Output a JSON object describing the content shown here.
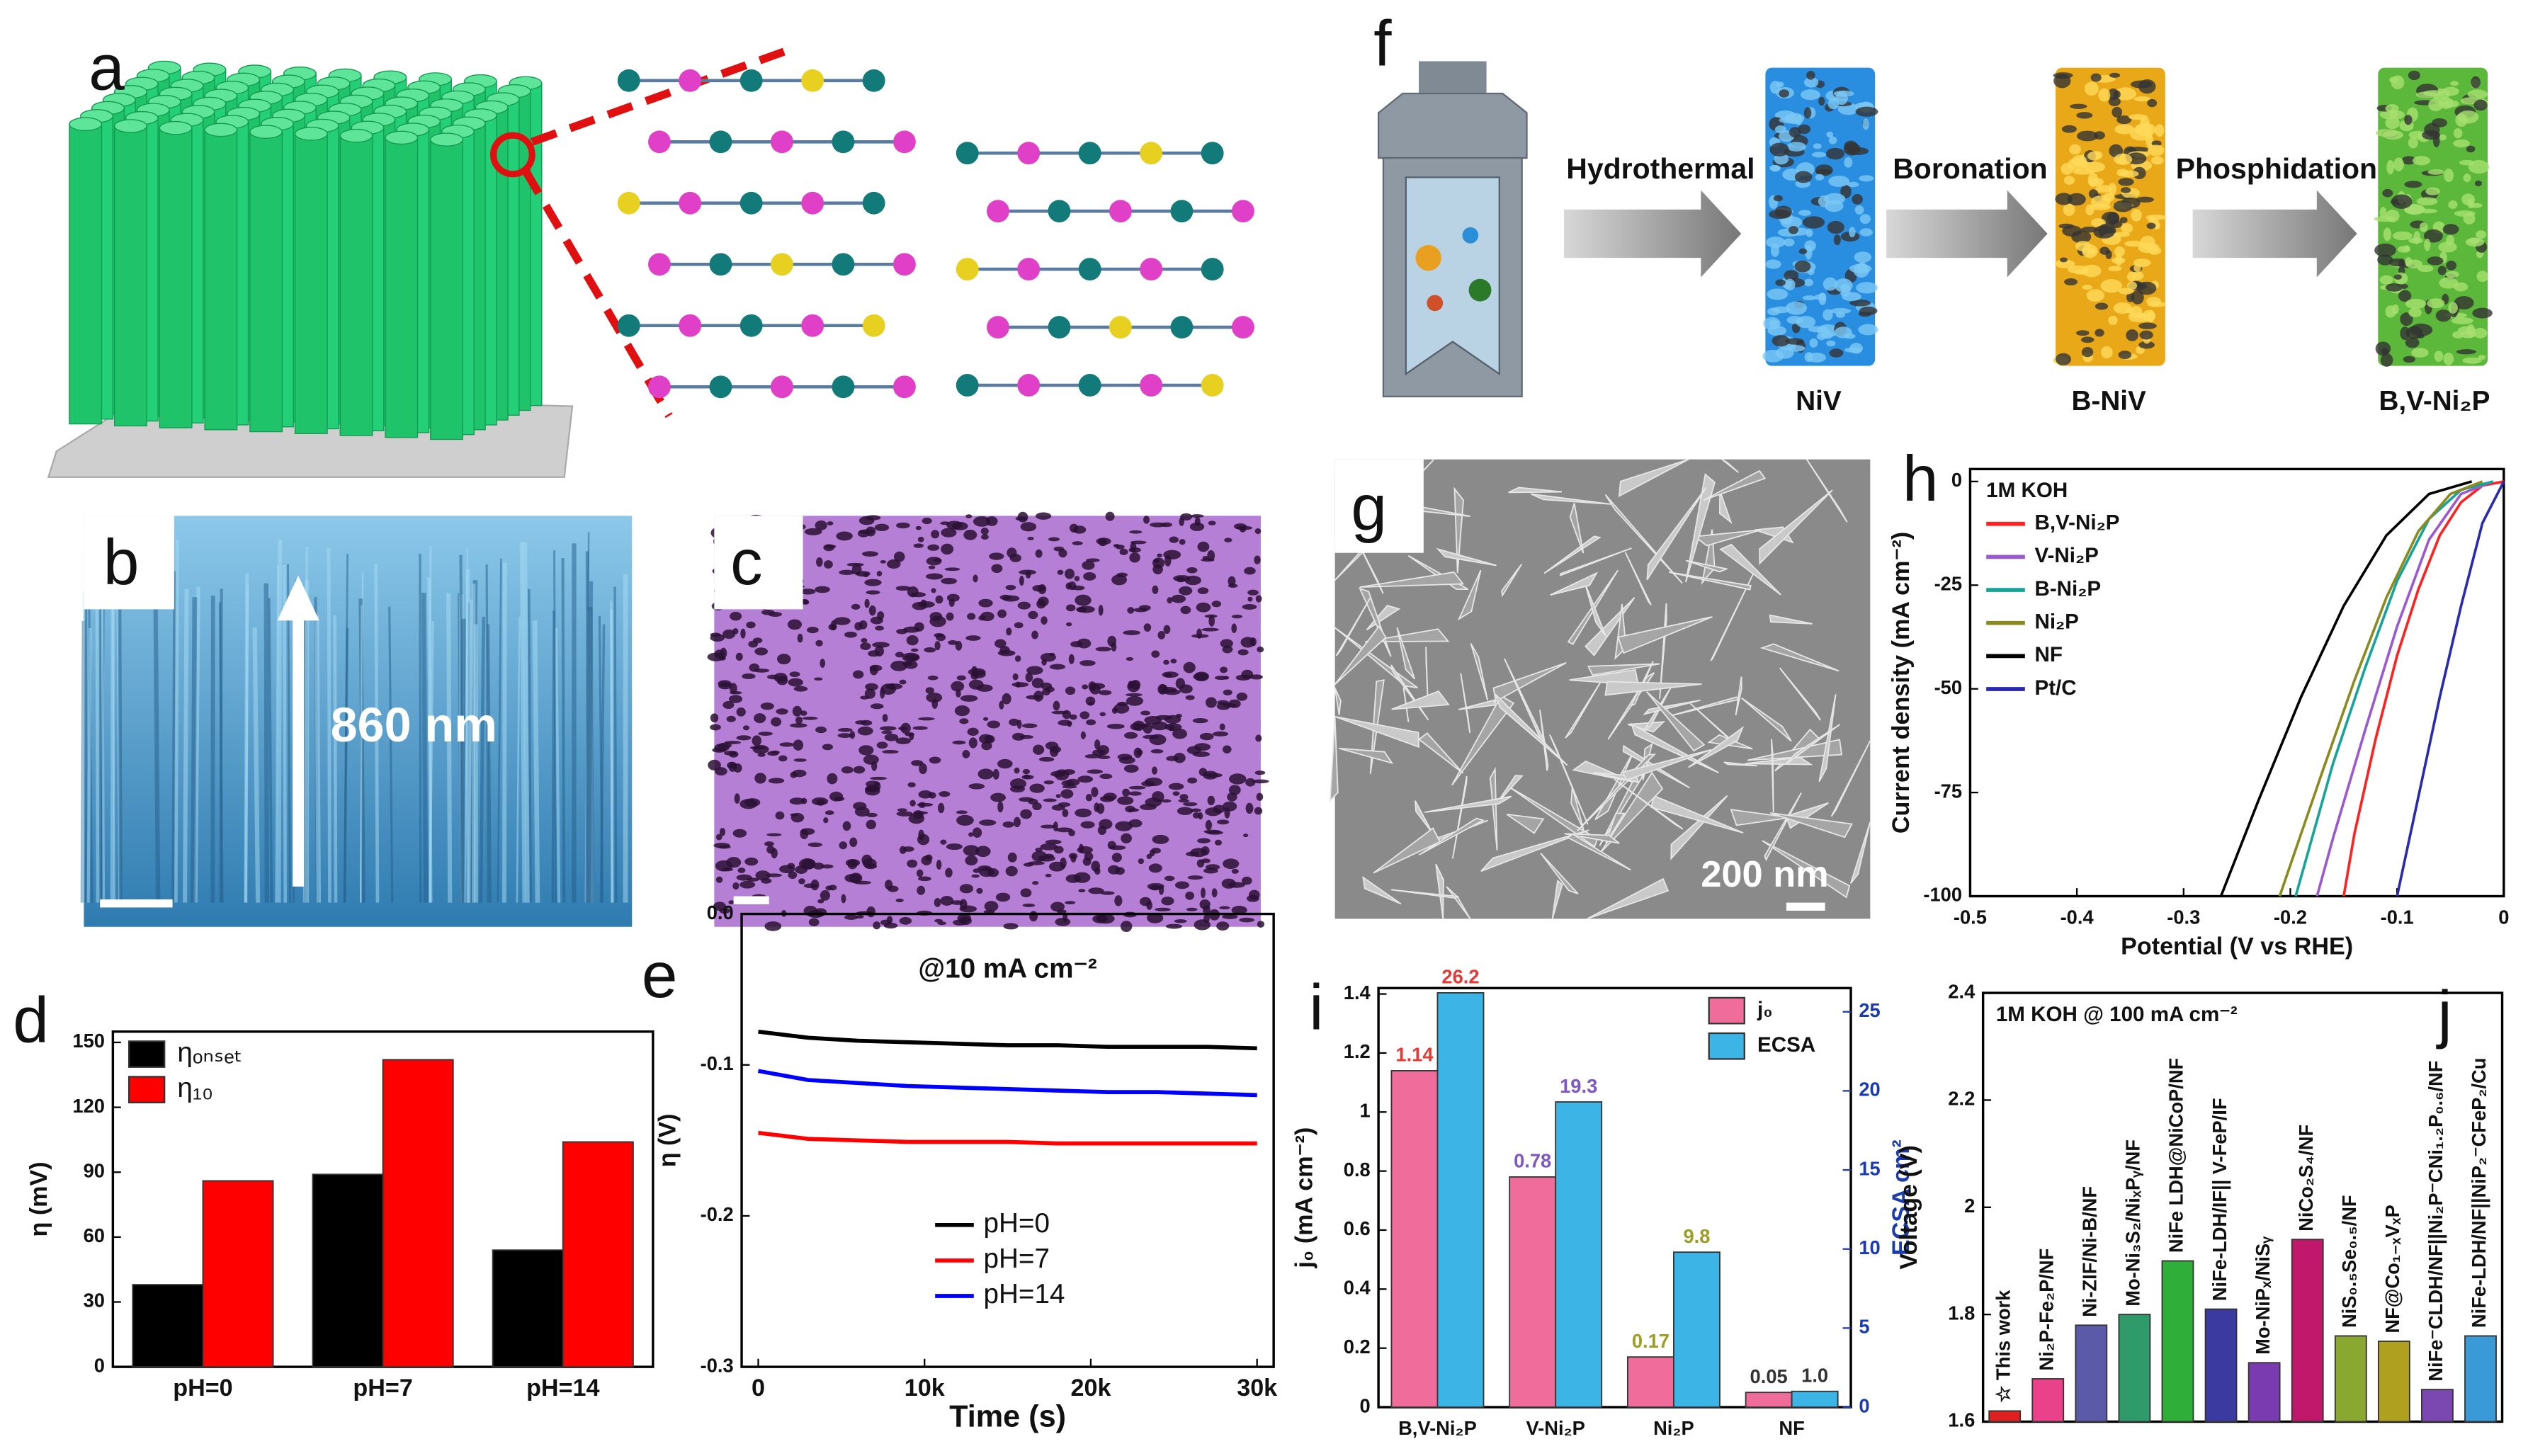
{
  "figure": {
    "a": "a",
    "b": "b",
    "b_scale": "860 nm",
    "c": "c",
    "f": "f",
    "f_steps": [
      "Hydrothermal",
      "Boronation",
      "Phosphidation"
    ],
    "f_products": [
      "NiV",
      "B-NiV",
      "B,V-Ni₂P"
    ],
    "g": "g",
    "g_scale": "200 nm"
  },
  "chart_data": [
    {
      "type": "bar",
      "label": "d",
      "ylabel": "η (mV)",
      "categories": [
        "pH=0",
        "pH=7",
        "pH=14"
      ],
      "series": [
        {
          "name": "ηₒₙₛₑₜ",
          "color": "#000000",
          "values": [
            38,
            89,
            54
          ]
        },
        {
          "name": "η₁₀",
          "color": "#ff0000",
          "values": [
            86,
            142,
            104
          ]
        }
      ],
      "ylim": [
        0,
        155
      ],
      "yticks": [
        0,
        30,
        60,
        90,
        120,
        150
      ],
      "legend": "upper left"
    },
    {
      "type": "line",
      "label": "e",
      "title": "@10 mA cm⁻²",
      "xlabel": "Time (s)",
      "ylabel": "η (V)",
      "x": [
        0,
        3000,
        6000,
        9000,
        12000,
        15000,
        18000,
        21000,
        24000,
        27000,
        30000
      ],
      "series": [
        {
          "name": "pH=0",
          "color": "#000000",
          "values": [
            -0.078,
            -0.082,
            -0.084,
            -0.085,
            -0.086,
            -0.087,
            -0.087,
            -0.088,
            -0.088,
            -0.088,
            -0.089
          ]
        },
        {
          "name": "pH=7",
          "color": "#ff0000",
          "values": [
            -0.145,
            -0.149,
            -0.15,
            -0.151,
            -0.151,
            -0.151,
            -0.152,
            -0.152,
            -0.152,
            -0.152,
            -0.152
          ]
        },
        {
          "name": "pH=14",
          "color": "#0000ff",
          "values": [
            -0.104,
            -0.11,
            -0.112,
            -0.114,
            -0.115,
            -0.116,
            -0.117,
            -0.118,
            -0.118,
            -0.119,
            -0.12
          ]
        }
      ],
      "xlim": [
        -1000,
        31000
      ],
      "xticks": [
        0,
        {
          "value": 10000,
          "label": "10k"
        },
        {
          "value": 20000,
          "label": "20k"
        },
        {
          "value": 30000,
          "label": "30k"
        }
      ],
      "ylim": [
        -0.3,
        0
      ],
      "yticks": [
        -0.3,
        -0.2,
        -0.1,
        {
          "value": 0,
          "label": "0.0"
        }
      ],
      "legend": "lower center"
    },
    {
      "type": "line",
      "label": "h",
      "xlabel": "Potential (V vs RHE)",
      "ylabel": "Current density (mA cm⁻²)",
      "legend_title": "1M KOH",
      "legend": "upper left",
      "series": [
        {
          "name": "B,V-Ni₂P",
          "color": "#ff2020",
          "x": [
            0,
            -0.02,
            -0.04,
            -0.06,
            -0.08,
            -0.1,
            -0.12,
            -0.14,
            -0.15
          ],
          "values": [
            0,
            -1,
            -5,
            -13,
            -26,
            -42,
            -62,
            -85,
            -100
          ]
        },
        {
          "name": "V-Ni₂P",
          "color": "#9b59d0",
          "x": [
            -0.01,
            -0.04,
            -0.07,
            -0.1,
            -0.13,
            -0.16,
            -0.175
          ],
          "values": [
            0,
            -3,
            -14,
            -35,
            -60,
            -86,
            -100
          ]
        },
        {
          "name": "B-Ni₂P",
          "color": "#16a39a",
          "x": [
            -0.01,
            -0.04,
            -0.07,
            -0.1,
            -0.13,
            -0.16,
            -0.195
          ],
          "values": [
            0,
            -2,
            -9,
            -24,
            -45,
            -68,
            -100
          ]
        },
        {
          "name": "Ni₂P",
          "color": "#8a8a1e",
          "x": [
            -0.02,
            -0.05,
            -0.08,
            -0.11,
            -0.14,
            -0.17,
            -0.21
          ],
          "values": [
            0,
            -3,
            -12,
            -28,
            -48,
            -70,
            -100
          ]
        },
        {
          "name": "NF",
          "color": "#000000",
          "x": [
            -0.03,
            -0.07,
            -0.11,
            -0.15,
            -0.19,
            -0.23,
            -0.265
          ],
          "values": [
            0,
            -3,
            -13,
            -30,
            -52,
            -77,
            -100
          ]
        },
        {
          "name": "Pt/C",
          "color": "#2a2ab0",
          "x": [
            0,
            -0.02,
            -0.04,
            -0.06,
            -0.08,
            -0.1
          ],
          "values": [
            0,
            -10,
            -30,
            -52,
            -76,
            -100
          ]
        }
      ],
      "xlim": [
        -0.5,
        0
      ],
      "xticks": [
        -0.5,
        -0.4,
        -0.3,
        -0.2,
        -0.1,
        0
      ],
      "ylim": [
        -100,
        3
      ],
      "yticks": [
        0,
        -25,
        -50,
        -75,
        -100
      ]
    },
    {
      "type": "bar",
      "label": "i",
      "ylabel": "j₀ (mA cm⁻²)",
      "y2label": "ECSA cm²",
      "categories": [
        "B,V-Ni₂P",
        "V-Ni₂P",
        "Ni₂P",
        "NF"
      ],
      "series": [
        {
          "name": "j₀",
          "color": "#f06c9b",
          "values": [
            1.14,
            0.78,
            0.17,
            0.05
          ]
        },
        {
          "name": "ECSA",
          "color": "#3cb4e6",
          "axis": "y2",
          "values": [
            26.2,
            19.3,
            9.8,
            1.0
          ],
          "value_labels": [
            "26.2",
            "19.3",
            "9.8",
            "1.0"
          ]
        }
      ],
      "value_label_colors": [
        "#e53935",
        "#7e57c2",
        "#9e9d24",
        "#333333"
      ],
      "ylim": [
        0,
        1.42
      ],
      "yticks": [
        0,
        0.2,
        0.4,
        0.6,
        0.8,
        1,
        1.2,
        1.4
      ],
      "y2lim": [
        0,
        26.5
      ],
      "y2ticks": [
        0,
        5,
        10,
        15,
        20,
        25
      ],
      "legend": "upper right"
    },
    {
      "type": "bar",
      "label": "j",
      "ylabel": "Voltage (V)",
      "annotation": "1M KOH @ 100 mA cm⁻²",
      "categories": [
        "☆ This work",
        "Ni₂P-Fe₂P/NF",
        "Ni-ZIF/Ni-B/NF",
        "Mo-Ni₃S₂/NiₓPᵧ/NF",
        "NiFe LDH@NiCoP/NF",
        "NiFe-LDH/IF|| V-FeP/IF",
        "Mo-NiPₓ/NiSᵧ",
        "NiCo₂S₄/NF",
        "NiS₀.₅Se₀.₅/NF",
        "NF@Co₁₋ₓVₓP",
        "NiFe⁻CLDH/NF||Ni₂P⁻CNi₁.₂P₀.₆/NF",
        "NiFe-LDH/NF||NiP₂⁻CFeP₂/Cu"
      ],
      "values": [
        1.62,
        1.68,
        1.78,
        1.8,
        1.9,
        1.81,
        1.71,
        1.94,
        1.76,
        1.75,
        1.66,
        1.76
      ],
      "colors": [
        "#e02020",
        "#e9418a",
        "#5a5aa8",
        "#2f9a6a",
        "#2fae3a",
        "#3a3aa0",
        "#7a3ab0",
        "#c0186a",
        "#8aa830",
        "#b0a020",
        "#7a48b0",
        "#3a9ad8"
      ],
      "ylim": [
        1.6,
        2.4
      ],
      "yticks": [
        1.6,
        1.8,
        2,
        2.2,
        2.4
      ]
    }
  ]
}
